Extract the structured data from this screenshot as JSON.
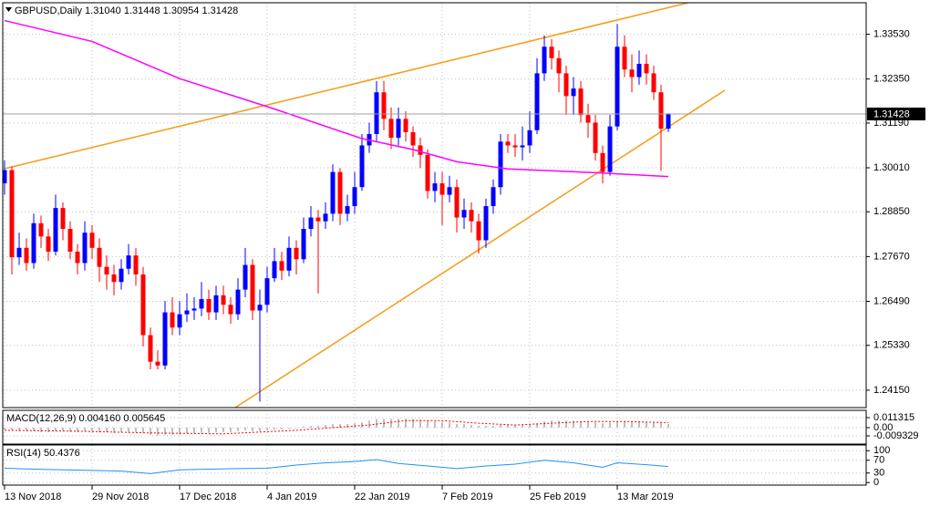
{
  "chart_data": [
    {
      "type": "candlestick",
      "title": "GBPUSD,Daily  1.31040 1.31448 1.30954 1.31428",
      "up_color": "#0000ff",
      "down_color": "#ff0000",
      "open": [
        1.296,
        1.2995,
        1.2765,
        1.279,
        1.275,
        1.2855,
        1.282,
        1.278,
        1.2895,
        1.284,
        1.278,
        1.275,
        1.283,
        1.279,
        1.274,
        1.272,
        1.27,
        1.2735,
        1.277,
        1.272,
        1.256,
        1.249,
        1.248,
        1.262,
        1.258,
        1.2615,
        1.2625,
        1.263,
        1.2655,
        1.262,
        1.2665,
        1.264,
        1.2615,
        1.268,
        1.2745,
        1.2625,
        1.264,
        1.271,
        1.2755,
        1.273,
        1.279,
        1.276,
        1.284,
        1.287,
        1.286,
        1.288,
        1.299,
        1.288,
        1.29,
        1.295,
        1.306,
        1.309,
        1.32,
        1.313,
        1.308,
        1.313,
        1.3095,
        1.306,
        1.3035,
        1.294,
        1.296,
        1.293,
        1.295,
        1.287,
        1.289,
        1.286,
        1.281,
        1.29,
        1.295,
        1.307,
        1.306,
        1.3055,
        1.306,
        1.31,
        1.325,
        1.332,
        1.329,
        1.325,
        1.319,
        1.321,
        1.314,
        1.312,
        1.304,
        1.299,
        1.311,
        1.332,
        1.326,
        1.324,
        1.3275,
        1.325,
        1.32,
        1.3104
      ],
      "high": [
        1.302,
        1.3005,
        1.283,
        1.2815,
        1.288,
        1.2875,
        1.284,
        1.293,
        1.291,
        1.286,
        1.28,
        1.286,
        1.285,
        1.2815,
        1.277,
        1.2745,
        1.276,
        1.28,
        1.279,
        1.274,
        1.258,
        1.252,
        1.265,
        1.266,
        1.265,
        1.267,
        1.266,
        1.27,
        1.268,
        1.269,
        1.269,
        1.266,
        1.271,
        1.279,
        1.276,
        1.268,
        1.274,
        1.279,
        1.278,
        1.282,
        1.281,
        1.287,
        1.29,
        1.289,
        1.291,
        1.301,
        1.3,
        1.293,
        1.299,
        1.309,
        1.312,
        1.323,
        1.323,
        1.316,
        1.316,
        1.315,
        1.311,
        1.308,
        1.305,
        1.299,
        1.299,
        1.298,
        1.297,
        1.292,
        1.291,
        1.288,
        1.292,
        1.297,
        1.309,
        1.309,
        1.309,
        1.311,
        1.315,
        1.329,
        1.335,
        1.334,
        1.331,
        1.327,
        1.324,
        1.323,
        1.317,
        1.314,
        1.306,
        1.314,
        1.338,
        1.335,
        1.33,
        1.331,
        1.33,
        1.327,
        1.322,
        1.31448
      ],
      "low": [
        1.293,
        1.272,
        1.2745,
        1.273,
        1.2735,
        1.279,
        1.2755,
        1.277,
        1.281,
        1.276,
        1.272,
        1.273,
        1.276,
        1.27,
        1.268,
        1.2665,
        1.268,
        1.272,
        1.269,
        1.253,
        1.247,
        1.247,
        1.247,
        1.256,
        1.256,
        1.2595,
        1.26,
        1.261,
        1.26,
        1.26,
        1.2615,
        1.259,
        1.26,
        1.266,
        1.26,
        1.2385,
        1.262,
        1.27,
        1.2705,
        1.2715,
        1.272,
        1.275,
        1.282,
        1.267,
        1.284,
        1.286,
        1.285,
        1.286,
        1.288,
        1.294,
        1.304,
        1.307,
        1.31,
        1.305,
        1.306,
        1.307,
        1.303,
        1.3,
        1.292,
        1.291,
        1.285,
        1.291,
        1.283,
        1.284,
        1.283,
        1.2775,
        1.279,
        1.288,
        1.293,
        1.304,
        1.303,
        1.302,
        1.304,
        1.309,
        1.323,
        1.326,
        1.32,
        1.314,
        1.314,
        1.312,
        1.308,
        1.302,
        1.296,
        1.298,
        1.31,
        1.324,
        1.32,
        1.322,
        1.322,
        1.318,
        1.2993,
        1.30954
      ],
      "close": [
        1.2995,
        1.2765,
        1.279,
        1.275,
        1.2855,
        1.282,
        1.278,
        1.2895,
        1.284,
        1.278,
        1.275,
        1.283,
        1.279,
        1.274,
        1.272,
        1.27,
        1.2735,
        1.277,
        1.272,
        1.256,
        1.249,
        1.248,
        1.262,
        1.258,
        1.2615,
        1.2625,
        1.263,
        1.2655,
        1.262,
        1.2665,
        1.264,
        1.2615,
        1.268,
        1.2745,
        1.2625,
        1.264,
        1.271,
        1.2755,
        1.273,
        1.279,
        1.276,
        1.284,
        1.287,
        1.286,
        1.288,
        1.299,
        1.288,
        1.29,
        1.295,
        1.306,
        1.309,
        1.32,
        1.313,
        1.308,
        1.313,
        1.3095,
        1.306,
        1.3035,
        1.294,
        1.296,
        1.293,
        1.295,
        1.287,
        1.289,
        1.286,
        1.281,
        1.29,
        1.295,
        1.307,
        1.306,
        1.3055,
        1.306,
        1.31,
        1.325,
        1.332,
        1.329,
        1.325,
        1.319,
        1.321,
        1.314,
        1.312,
        1.304,
        1.299,
        1.311,
        1.332,
        1.326,
        1.324,
        1.3275,
        1.325,
        1.32,
        1.3104,
        1.31428
      ],
      "moving_average": {
        "color": "#ff00ff",
        "x": [
          0,
          12,
          24,
          37,
          49,
          56,
          62,
          69,
          81,
          91
        ],
        "values": [
          1.3389,
          1.3334,
          1.3236,
          1.3156,
          1.3078,
          1.3049,
          1.3017,
          1.2998,
          1.2988,
          1.2978
        ]
      },
      "current_price": {
        "value": 1.31428,
        "label": "1.31428"
      },
      "xlim": [
        -0.25,
        118.125
      ],
      "xticks": [
        {
          "value": 0,
          "label": "13 Nov 2018"
        },
        {
          "value": 12,
          "label": "29 Nov 2018"
        },
        {
          "value": 24,
          "label": "17 Dec 2018"
        },
        {
          "value": 36,
          "label": "4 Jan 2019"
        },
        {
          "value": 48,
          "label": "22 Jan 2019"
        },
        {
          "value": 60,
          "label": "7 Feb 2019"
        },
        {
          "value": 72,
          "label": "25 Feb 2019"
        },
        {
          "value": 84,
          "label": "13 Mar 2019"
        }
      ],
      "ylim": [
        1.2369,
        1.3436
      ],
      "yticks": [
        {
          "value": 1.3353,
          "label": "1.33530"
        },
        {
          "value": 1.3235,
          "label": "1.32350"
        },
        {
          "value": 1.3119,
          "label": "1.31190"
        },
        {
          "value": 1.3001,
          "label": "1.30010"
        },
        {
          "value": 1.2885,
          "label": "1.28850"
        },
        {
          "value": 1.2767,
          "label": "1.27670"
        },
        {
          "value": 1.2649,
          "label": "1.26490"
        },
        {
          "value": 1.2533,
          "label": "1.25330"
        },
        {
          "value": 1.2415,
          "label": "1.24150"
        }
      ],
      "grid": true
    },
    {
      "type": "bar",
      "title": "MACD(12,26,9) 0.004160 0.005645",
      "color": "#c0c0c0",
      "values": [
        -0.002,
        -0.003,
        -0.004,
        -0.004,
        -0.004,
        -0.005,
        -0.005,
        -0.004,
        -0.004,
        -0.005,
        -0.005,
        -0.004,
        -0.004,
        -0.005,
        -0.005,
        -0.006,
        -0.005,
        -0.005,
        -0.005,
        -0.006,
        -0.008,
        -0.009,
        -0.008,
        -0.008,
        -0.008,
        -0.007,
        -0.007,
        -0.006,
        -0.006,
        -0.005,
        -0.005,
        -0.005,
        -0.004,
        -0.003,
        -0.004,
        -0.004,
        -0.003,
        -0.002,
        -0.002,
        -0.001,
        0.0,
        0.001,
        0.002,
        0.002,
        0.003,
        0.004,
        0.004,
        0.004,
        0.005,
        0.006,
        0.008,
        0.01,
        0.01,
        0.01,
        0.01,
        0.01,
        0.01,
        0.009,
        0.008,
        0.007,
        0.006,
        0.006,
        0.004,
        0.004,
        0.003,
        0.002,
        0.002,
        0.002,
        0.003,
        0.003,
        0.003,
        0.003,
        0.004,
        0.005,
        0.007,
        0.008,
        0.008,
        0.008,
        0.008,
        0.007,
        0.007,
        0.006,
        0.005,
        0.006,
        0.007,
        0.007,
        0.007,
        0.007,
        0.006,
        0.006,
        0.005,
        0.00416
      ],
      "signal": {
        "color": "#ff0000",
        "x": [
          0,
          10,
          20,
          30,
          40,
          50,
          55,
          60,
          65,
          70,
          75,
          80,
          85,
          91
        ],
        "values": [
          -0.003,
          -0.004,
          -0.006,
          -0.007,
          -0.003,
          0.003,
          0.008,
          0.008,
          0.005,
          0.003,
          0.005,
          0.007,
          0.007,
          0.005645
        ]
      },
      "ylim": [
        -0.0186,
        0.0196
      ],
      "yticks": [
        0.011315,
        {
          "value": 0,
          "label": "0.00"
        },
        -0.009329
      ]
    },
    {
      "type": "line",
      "title": "RSI(14) 50.4376",
      "color": "#1e90ff",
      "x": [
        0,
        4,
        8,
        12,
        16,
        20,
        24,
        28,
        32,
        36,
        40,
        44,
        48,
        51,
        54,
        58,
        62,
        66,
        70,
        74,
        78,
        82,
        84,
        88,
        91
      ],
      "values": [
        45,
        42,
        40,
        38,
        36,
        28,
        40,
        42,
        44,
        45,
        55,
        62,
        66,
        72,
        60,
        52,
        44,
        52,
        58,
        70,
        62,
        48,
        62,
        56,
        50.4376
      ],
      "ylim": [
        -8,
        118
      ],
      "yticks": [
        100,
        70,
        30,
        0
      ]
    }
  ]
}
